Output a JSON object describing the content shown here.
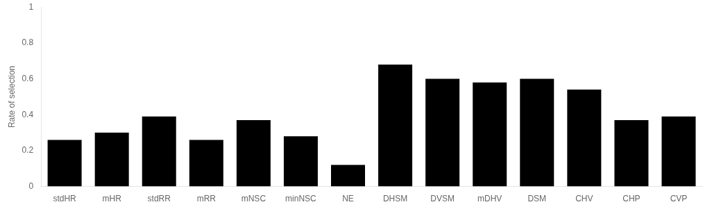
{
  "chart_data": {
    "type": "bar",
    "categories": [
      "stdHR",
      "mHR",
      "stdRR",
      "mRR",
      "mNSC",
      "minNSC",
      "NE",
      "DHSM",
      "DVSM",
      "mDHV",
      "DSM",
      "CHV",
      "CHP",
      "CVP"
    ],
    "values": [
      0.26,
      0.3,
      0.39,
      0.26,
      0.37,
      0.28,
      0.12,
      0.68,
      0.6,
      0.58,
      0.6,
      0.54,
      0.37,
      0.39
    ],
    "color": "#000000",
    "ylabel": "Rate of selection",
    "ylim": [
      0,
      1
    ],
    "yticks": [
      0,
      0.2,
      0.4,
      0.6,
      0.8,
      1
    ],
    "grid": false
  }
}
